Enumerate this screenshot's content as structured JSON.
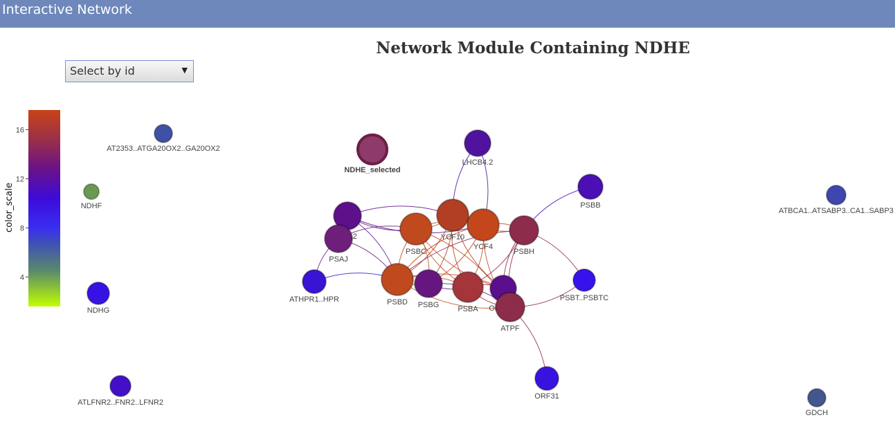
{
  "header": {
    "title": "Interactive Network"
  },
  "network": {
    "title": "Network Module Containing NDHE"
  },
  "selector": {
    "value": "Select by id",
    "caret_icon": "chevron-down-icon"
  },
  "colorbar": {
    "title": "color_scale",
    "ticks": [
      "16",
      "12",
      "8",
      "4"
    ],
    "tick_values": [
      16,
      12,
      8,
      4
    ],
    "range": [
      1.6,
      17.6
    ],
    "stops": [
      {
        "offset": 0.0,
        "color": "#c84318"
      },
      {
        "offset": 0.15,
        "color": "#9b3048"
      },
      {
        "offset": 0.3,
        "color": "#6a1287"
      },
      {
        "offset": 0.45,
        "color": "#3c0bd9"
      },
      {
        "offset": 0.6,
        "color": "#3a2ef2"
      },
      {
        "offset": 0.68,
        "color": "#3f51b5"
      },
      {
        "offset": 0.82,
        "color": "#5a8a6a"
      },
      {
        "offset": 1.0,
        "color": "#c0ff00"
      }
    ]
  },
  "nodes": [
    {
      "id": "NDHE_selected",
      "label": "NDHE_selected",
      "color": "#8e3a6a",
      "selected": true
    },
    {
      "id": "LHCB4.2",
      "label": "LHCB4.2",
      "color": "#50139f"
    },
    {
      "id": "PSBB",
      "label": "PSBB",
      "color": "#4a0fb5"
    },
    {
      "id": "FBA2",
      "label": "FBA2",
      "color": "#5e0f8c"
    },
    {
      "id": "PSAJ",
      "label": "PSAJ",
      "color": "#6e1f7b"
    },
    {
      "id": "PSBC",
      "label": "PSBC",
      "color": "#c04a1e"
    },
    {
      "id": "YCF10",
      "label": "YCF10",
      "color": "#b23f24"
    },
    {
      "id": "YCF4",
      "label": "YCF4",
      "color": "#c4471b"
    },
    {
      "id": "PSBH",
      "label": "PSBH",
      "color": "#8e2c4c"
    },
    {
      "id": "ATHPR1..HPR",
      "label": "ATHPR1..HPR",
      "color": "#3a13d4"
    },
    {
      "id": "PSBD",
      "label": "PSBD",
      "color": "#c04a1e"
    },
    {
      "id": "PSBG",
      "label": "PSBG",
      "color": "#66177f"
    },
    {
      "id": "PSBA",
      "label": "PSBA",
      "color": "#a4353a"
    },
    {
      "id": "ORF294",
      "label": "ORF294",
      "color": "#5a0f8c"
    },
    {
      "id": "ATPF",
      "label": "ATPF",
      "color": "#8e2c4c"
    },
    {
      "id": "PSBT..PSBTC",
      "label": "PSBT..PSBTC",
      "color": "#3712ea"
    },
    {
      "id": "ORF31",
      "label": "ORF31",
      "color": "#3a12e0"
    },
    {
      "id": "AT2353..ATGA20OX2..GA20OX2",
      "label": "AT2353..ATGA20OX2..GA20OX2",
      "color": "#3f51a6"
    },
    {
      "id": "NDHF",
      "label": "NDHF",
      "color": "#6a9a50"
    },
    {
      "id": "NDHG",
      "label": "NDHG",
      "color": "#3812e4"
    },
    {
      "id": "ATLFNR2..FNR2..LFNR2",
      "label": "ATLFNR2..FNR2..LFNR2",
      "color": "#4310c8"
    },
    {
      "id": "ATBCA1..ATSABP3..CA1..SABP3",
      "label": "ATBCA1..ATSABP3..CA1..SABP3",
      "color": "#3f46b0"
    },
    {
      "id": "GDCH",
      "label": "GDCH",
      "color": "#45568f"
    }
  ],
  "edges": [
    [
      "LHCB4.2",
      "YCF10"
    ],
    [
      "LHCB4.2",
      "YCF4"
    ],
    [
      "PSBB",
      "PSBH"
    ],
    [
      "FBA2",
      "YCF10"
    ],
    [
      "FBA2",
      "PSBC"
    ],
    [
      "FBA2",
      "PSBD"
    ],
    [
      "FBA2",
      "YCF4"
    ],
    [
      "PSAJ",
      "PSBC"
    ],
    [
      "PSAJ",
      "ATHPR1..HPR"
    ],
    [
      "PSAJ",
      "PSBD"
    ],
    [
      "PSBC",
      "YCF10"
    ],
    [
      "PSBC",
      "YCF4"
    ],
    [
      "PSBC",
      "PSBD"
    ],
    [
      "PSBC",
      "PSBG"
    ],
    [
      "PSBC",
      "PSBA"
    ],
    [
      "PSBC",
      "ATPF"
    ],
    [
      "PSBC",
      "ORF294"
    ],
    [
      "YCF10",
      "YCF4"
    ],
    [
      "YCF10",
      "PSBH"
    ],
    [
      "YCF10",
      "PSBD"
    ],
    [
      "YCF10",
      "PSBA"
    ],
    [
      "YCF10",
      "PSBG"
    ],
    [
      "YCF10",
      "ORF294"
    ],
    [
      "YCF4",
      "PSBH"
    ],
    [
      "YCF4",
      "PSBD"
    ],
    [
      "YCF4",
      "PSBA"
    ],
    [
      "YCF4",
      "ATPF"
    ],
    [
      "YCF4",
      "PSBG"
    ],
    [
      "PSBH",
      "PSBD"
    ],
    [
      "PSBH",
      "PSBA"
    ],
    [
      "PSBH",
      "ATPF"
    ],
    [
      "PSBH",
      "PSBT..PSBTC"
    ],
    [
      "PSBH",
      "ORF294"
    ],
    [
      "ATHPR1..HPR",
      "PSBD"
    ],
    [
      "PSBD",
      "PSBG"
    ],
    [
      "PSBD",
      "PSBA"
    ],
    [
      "PSBD",
      "ATPF"
    ],
    [
      "PSBD",
      "ORF294"
    ],
    [
      "PSBG",
      "PSBA"
    ],
    [
      "PSBG",
      "ATPF"
    ],
    [
      "PSBA",
      "ATPF"
    ],
    [
      "PSBA",
      "ORF294"
    ],
    [
      "ATPF",
      "PSBT..PSBTC"
    ],
    [
      "ATPF",
      "ORF31"
    ],
    [
      "ORF294",
      "ATPF"
    ]
  ]
}
